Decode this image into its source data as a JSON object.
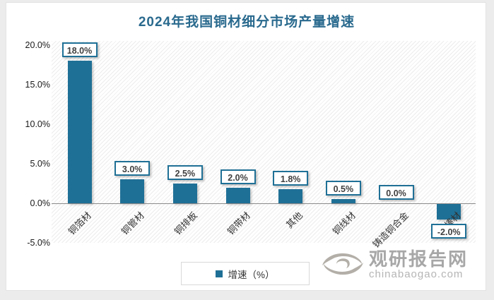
{
  "chart_data": {
    "type": "bar",
    "title": "2024年我国铜材细分市场产量增速",
    "categories": [
      "铜箔材",
      "铜管材",
      "铜排板",
      "铜带材",
      "其他",
      "铜线材",
      "铸造铜合金",
      "铜棒材"
    ],
    "series": [
      {
        "name": "增速（%）",
        "values": [
          18.0,
          3.0,
          2.5,
          2.0,
          1.8,
          0.5,
          0.0,
          -2.0
        ]
      }
    ],
    "data_labels": [
      "18.0%",
      "3.0%",
      "2.5%",
      "2.0%",
      "1.8%",
      "0.5%",
      "0.0%",
      "-2.0%"
    ],
    "y_ticks": [
      {
        "label": "20.0%",
        "value": 20
      },
      {
        "label": "15.0%",
        "value": 15
      },
      {
        "label": "10.0%",
        "value": 10
      },
      {
        "label": "5.0%",
        "value": 5
      },
      {
        "label": "0.0%",
        "value": 0
      },
      {
        "label": "-5.0%",
        "value": -5
      }
    ],
    "ylim": [
      -5,
      20
    ],
    "xlabel": "",
    "ylabel": "",
    "grid": false,
    "legend": [
      "增速（%）"
    ],
    "legend_position": "bottom"
  },
  "watermark": {
    "name": "观研报告网",
    "domain": "chinabaogao.com"
  },
  "colors": {
    "bar": "#1F7096",
    "title": "#2A6A8E",
    "data_label_border": "#1F7096",
    "data_label_text": "#404040",
    "axis_line": "#8A8A8A",
    "watermark_gray": "#ADA9A2"
  }
}
